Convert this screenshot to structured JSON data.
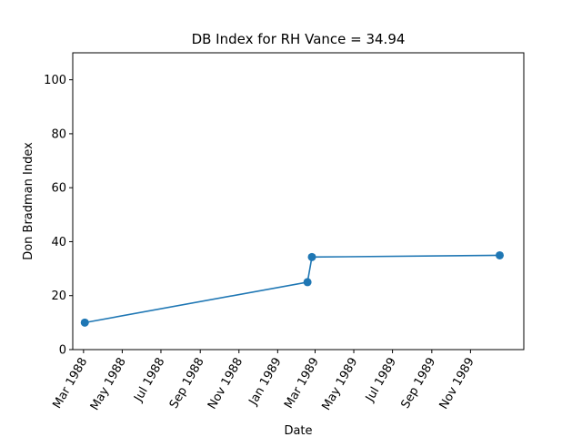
{
  "chart_data": {
    "type": "line",
    "title": "DB Index for RH Vance = 34.94",
    "xlabel": "Date",
    "ylabel": "Don Bradman Index",
    "ylim": [
      0,
      110
    ],
    "xlim": [
      "1988-02-13",
      "1990-01-24"
    ],
    "yticks": [
      0,
      20,
      40,
      60,
      80,
      100
    ],
    "xticks": [
      {
        "date": "1988-03-01",
        "label": "Mar 1988"
      },
      {
        "date": "1988-05-01",
        "label": "May 1988"
      },
      {
        "date": "1988-07-01",
        "label": "Jul 1988"
      },
      {
        "date": "1988-09-01",
        "label": "Sep 1988"
      },
      {
        "date": "1988-11-01",
        "label": "Nov 1988"
      },
      {
        "date": "1989-01-01",
        "label": "Jan 1989"
      },
      {
        "date": "1989-03-01",
        "label": "Mar 1989"
      },
      {
        "date": "1989-05-01",
        "label": "May 1989"
      },
      {
        "date": "1989-07-01",
        "label": "Jul 1989"
      },
      {
        "date": "1989-09-01",
        "label": "Sep 1989"
      },
      {
        "date": "1989-11-01",
        "label": "Nov 1989"
      }
    ],
    "series": [
      {
        "color": "#1f77b4",
        "marker": "circle",
        "points": [
          {
            "x": "1988-03-03",
            "y": 10.0
          },
          {
            "x": "1989-02-17",
            "y": 25.0
          },
          {
            "x": "1989-02-24",
            "y": 34.3
          },
          {
            "x": "1989-12-17",
            "y": 34.94
          }
        ]
      }
    ],
    "grid": false
  }
}
